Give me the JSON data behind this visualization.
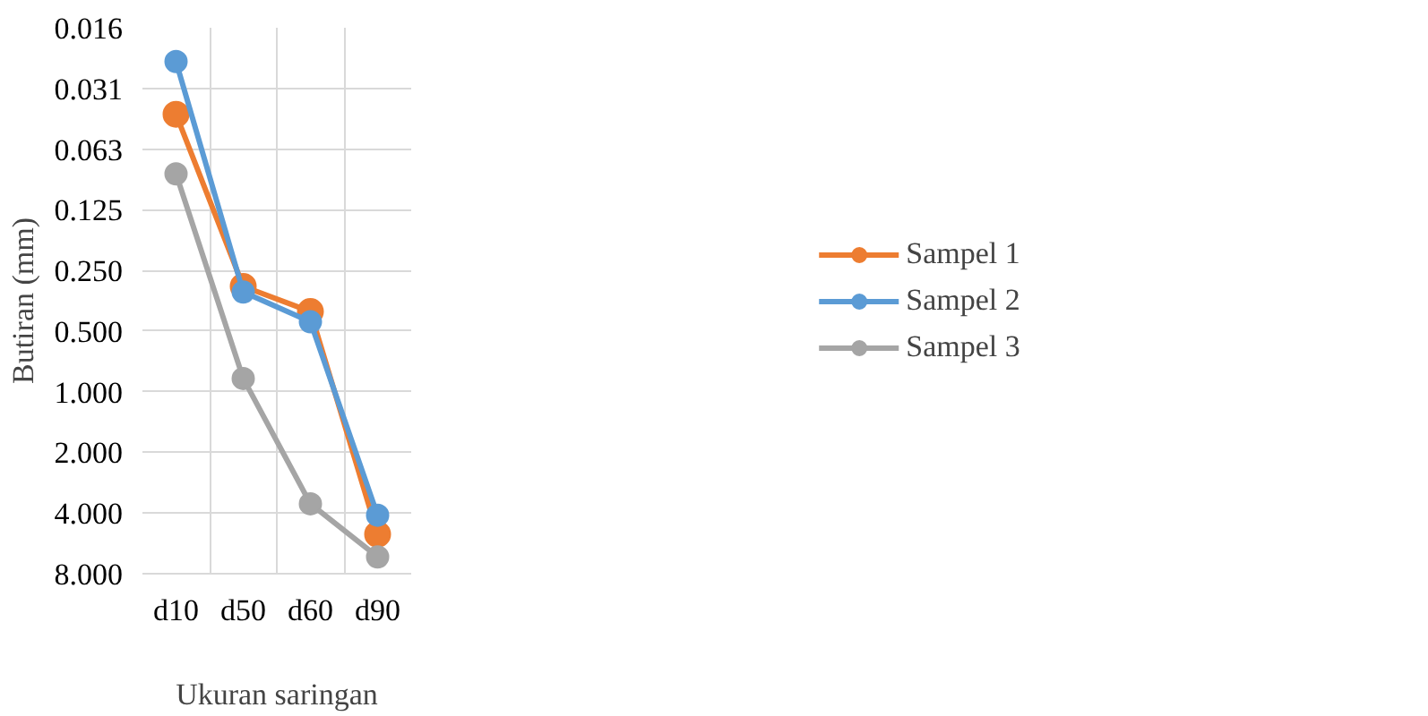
{
  "chart_data": {
    "type": "line",
    "xlabel": "Ukuran saringan",
    "ylabel": "Butiran (mm)",
    "categories": [
      "d10",
      "d50",
      "d60",
      "d90"
    ],
    "series": [
      {
        "name": "Sampel 1",
        "color": "#ed7d31",
        "values": [
          0.042,
          0.3,
          0.4,
          5.1
        ]
      },
      {
        "name": "Sampel 2",
        "color": "#5b9bd5",
        "values": [
          0.023,
          0.32,
          0.45,
          4.1
        ]
      },
      {
        "name": "Sampel 3",
        "color": "#a5a5a5",
        "values": [
          0.083,
          0.86,
          3.6,
          6.6
        ]
      }
    ],
    "log": "y",
    "ylim": [
      8,
      0.015625
    ],
    "yticks": [
      {
        "value": 0.015625,
        "label": "0.016"
      },
      {
        "value": 0.03125,
        "label": "0.031"
      },
      {
        "value": 0.0625,
        "label": "0.063"
      },
      {
        "value": 0.125,
        "label": "0.125"
      },
      {
        "value": 0.25,
        "label": "0.250"
      },
      {
        "value": 0.5,
        "label": "0.500"
      },
      {
        "value": 1,
        "label": "1.000"
      },
      {
        "value": 2,
        "label": "2.000"
      },
      {
        "value": 4,
        "label": "4.000"
      },
      {
        "value": 8,
        "label": "8.000"
      }
    ],
    "grid": true,
    "legend": "right",
    "marker": "circle",
    "line_style": "solid"
  }
}
